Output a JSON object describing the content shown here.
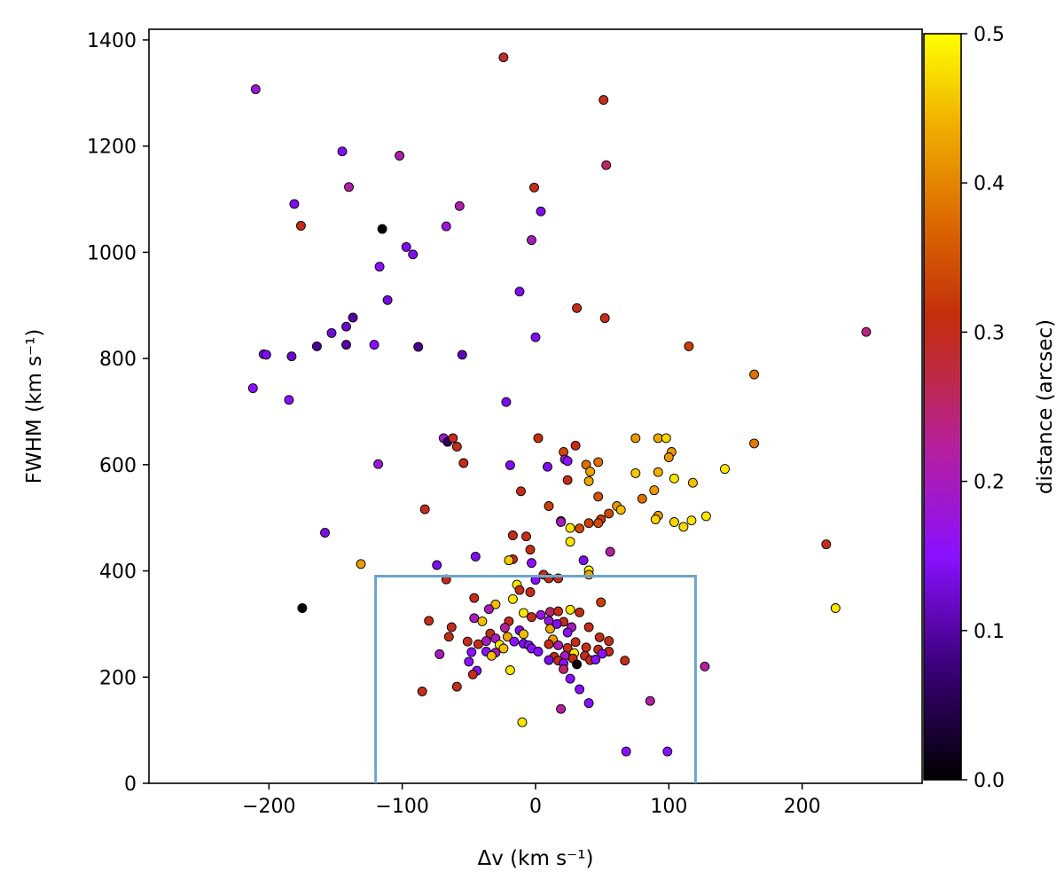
{
  "chart_data": {
    "type": "scatter",
    "xlabel": "Δv (km s⁻¹)",
    "ylabel": "FWHM (km s⁻¹)",
    "xlim": [
      -290,
      290
    ],
    "ylim": [
      0,
      1420
    ],
    "x_ticks": [
      -200,
      -100,
      0,
      100,
      200
    ],
    "y_ticks": [
      0,
      200,
      400,
      600,
      800,
      1000,
      1200,
      1400
    ],
    "colorbar": {
      "label": "distance (arcsec)",
      "range": [
        0.0,
        0.5
      ],
      "ticks": [
        0.0,
        0.1,
        0.2,
        0.3,
        0.4,
        0.5
      ],
      "tick_labels": [
        "0.0",
        "0.1",
        "0.2",
        "0.3",
        "0.4",
        "0.5"
      ],
      "colormap": "gnuplot"
    },
    "selection_box": {
      "x": [
        -120,
        120
      ],
      "y": [
        0,
        390
      ],
      "color": "#6aa6cd"
    },
    "grid": false,
    "points": [
      {
        "x": -210,
        "y": 1307,
        "d": 0.18
      },
      {
        "x": -24,
        "y": 1367,
        "d": 0.29
      },
      {
        "x": 51,
        "y": 1287,
        "d": 0.3
      },
      {
        "x": -145,
        "y": 1190,
        "d": 0.14
      },
      {
        "x": -102,
        "y": 1182,
        "d": 0.21
      },
      {
        "x": 53,
        "y": 1164,
        "d": 0.25
      },
      {
        "x": -140,
        "y": 1123,
        "d": 0.22
      },
      {
        "x": -1,
        "y": 1122,
        "d": 0.3
      },
      {
        "x": -181,
        "y": 1091,
        "d": 0.14
      },
      {
        "x": -57,
        "y": 1087,
        "d": 0.21
      },
      {
        "x": 4,
        "y": 1077,
        "d": 0.14
      },
      {
        "x": -176,
        "y": 1050,
        "d": 0.3
      },
      {
        "x": -115,
        "y": 1044,
        "d": 0.0
      },
      {
        "x": -67,
        "y": 1049,
        "d": 0.18
      },
      {
        "x": -3,
        "y": 1023,
        "d": 0.2
      },
      {
        "x": -97,
        "y": 1010,
        "d": 0.14
      },
      {
        "x": -92,
        "y": 996,
        "d": 0.14
      },
      {
        "x": -117,
        "y": 973,
        "d": 0.15
      },
      {
        "x": -12,
        "y": 926,
        "d": 0.14
      },
      {
        "x": -111,
        "y": 910,
        "d": 0.13
      },
      {
        "x": 31,
        "y": 895,
        "d": 0.3
      },
      {
        "x": 52,
        "y": 876,
        "d": 0.3
      },
      {
        "x": -137,
        "y": 877,
        "d": 0.1
      },
      {
        "x": -142,
        "y": 860,
        "d": 0.12
      },
      {
        "x": 248,
        "y": 850,
        "d": 0.24
      },
      {
        "x": -153,
        "y": 848,
        "d": 0.13
      },
      {
        "x": 0,
        "y": 840,
        "d": 0.14
      },
      {
        "x": -164,
        "y": 823,
        "d": 0.09
      },
      {
        "x": -142,
        "y": 826,
        "d": 0.1
      },
      {
        "x": -121,
        "y": 826,
        "d": 0.15
      },
      {
        "x": -88,
        "y": 822,
        "d": 0.09
      },
      {
        "x": 115,
        "y": 823,
        "d": 0.33
      },
      {
        "x": -204,
        "y": 808,
        "d": 0.14
      },
      {
        "x": -202,
        "y": 807,
        "d": 0.14
      },
      {
        "x": -183,
        "y": 804,
        "d": 0.12
      },
      {
        "x": -55,
        "y": 807,
        "d": 0.11
      },
      {
        "x": -212,
        "y": 744,
        "d": 0.15
      },
      {
        "x": -185,
        "y": 722,
        "d": 0.15
      },
      {
        "x": 164,
        "y": 770,
        "d": 0.38
      },
      {
        "x": -22,
        "y": 718,
        "d": 0.14
      },
      {
        "x": -69,
        "y": 650,
        "d": 0.19
      },
      {
        "x": -66,
        "y": 643,
        "d": 0.06
      },
      {
        "x": -62,
        "y": 650,
        "d": 0.3
      },
      {
        "x": -59,
        "y": 634,
        "d": 0.3
      },
      {
        "x": 2,
        "y": 650,
        "d": 0.31
      },
      {
        "x": 30,
        "y": 636,
        "d": 0.3
      },
      {
        "x": 75,
        "y": 650,
        "d": 0.42
      },
      {
        "x": 92,
        "y": 650,
        "d": 0.43
      },
      {
        "x": 98,
        "y": 650,
        "d": 0.47
      },
      {
        "x": 164,
        "y": 640,
        "d": 0.39
      },
      {
        "x": 21,
        "y": 624,
        "d": 0.34
      },
      {
        "x": 102,
        "y": 624,
        "d": 0.42
      },
      {
        "x": 100,
        "y": 614,
        "d": 0.42
      },
      {
        "x": 22,
        "y": 610,
        "d": 0.18
      },
      {
        "x": 24,
        "y": 607,
        "d": 0.15
      },
      {
        "x": -54,
        "y": 603,
        "d": 0.3
      },
      {
        "x": -118,
        "y": 601,
        "d": 0.18
      },
      {
        "x": -19,
        "y": 599,
        "d": 0.14
      },
      {
        "x": 38,
        "y": 600,
        "d": 0.38
      },
      {
        "x": 47,
        "y": 605,
        "d": 0.38
      },
      {
        "x": 9,
        "y": 596,
        "d": 0.14
      },
      {
        "x": 41,
        "y": 587,
        "d": 0.43
      },
      {
        "x": 75,
        "y": 584,
        "d": 0.46
      },
      {
        "x": 92,
        "y": 586,
        "d": 0.44
      },
      {
        "x": 142,
        "y": 592,
        "d": 0.48
      },
      {
        "x": 40,
        "y": 569,
        "d": 0.43
      },
      {
        "x": 24,
        "y": 571,
        "d": 0.3
      },
      {
        "x": 104,
        "y": 574,
        "d": 0.48
      },
      {
        "x": 118,
        "y": 566,
        "d": 0.45
      },
      {
        "x": -11,
        "y": 550,
        "d": 0.3
      },
      {
        "x": 89,
        "y": 552,
        "d": 0.42
      },
      {
        "x": 47,
        "y": 540,
        "d": 0.35
      },
      {
        "x": 80,
        "y": 536,
        "d": 0.38
      },
      {
        "x": 61,
        "y": 522,
        "d": 0.42
      },
      {
        "x": 64,
        "y": 515,
        "d": 0.45
      },
      {
        "x": 10,
        "y": 522,
        "d": 0.33
      },
      {
        "x": -83,
        "y": 516,
        "d": 0.3
      },
      {
        "x": 55,
        "y": 508,
        "d": 0.34
      },
      {
        "x": 92,
        "y": 504,
        "d": 0.42
      },
      {
        "x": 90,
        "y": 497,
        "d": 0.47
      },
      {
        "x": 128,
        "y": 503,
        "d": 0.48
      },
      {
        "x": 19,
        "y": 494,
        "d": 0.32
      },
      {
        "x": 49,
        "y": 497,
        "d": 0.33
      },
      {
        "x": 104,
        "y": 492,
        "d": 0.47
      },
      {
        "x": 117,
        "y": 495,
        "d": 0.48
      },
      {
        "x": 111,
        "y": 483,
        "d": 0.47
      },
      {
        "x": 26,
        "y": 481,
        "d": 0.48
      },
      {
        "x": 33,
        "y": 480,
        "d": 0.34
      },
      {
        "x": 40,
        "y": 490,
        "d": 0.33
      },
      {
        "x": 47,
        "y": 490,
        "d": 0.34
      },
      {
        "x": 19,
        "y": 492,
        "d": 0.2
      },
      {
        "x": -158,
        "y": 472,
        "d": 0.14
      },
      {
        "x": -17,
        "y": 467,
        "d": 0.3
      },
      {
        "x": -7,
        "y": 465,
        "d": 0.3
      },
      {
        "x": 26,
        "y": 455,
        "d": 0.48
      },
      {
        "x": -4,
        "y": 440,
        "d": 0.3
      },
      {
        "x": 56,
        "y": 436,
        "d": 0.22
      },
      {
        "x": 218,
        "y": 450,
        "d": 0.3
      },
      {
        "x": -45,
        "y": 427,
        "d": 0.14
      },
      {
        "x": -17,
        "y": 422,
        "d": 0.3
      },
      {
        "x": -20,
        "y": 420,
        "d": 0.46
      },
      {
        "x": -3,
        "y": 415,
        "d": 0.15
      },
      {
        "x": 36,
        "y": 420,
        "d": 0.14
      },
      {
        "x": -131,
        "y": 413,
        "d": 0.42
      },
      {
        "x": -74,
        "y": 411,
        "d": 0.14
      },
      {
        "x": 40,
        "y": 401,
        "d": 0.5
      },
      {
        "x": 40,
        "y": 393,
        "d": 0.43
      },
      {
        "x": 6,
        "y": 393,
        "d": 0.3
      },
      {
        "x": 10,
        "y": 386,
        "d": 0.3
      },
      {
        "x": 17,
        "y": 386,
        "d": 0.3
      },
      {
        "x": -67,
        "y": 384,
        "d": 0.3
      },
      {
        "x": 0,
        "y": 383,
        "d": 0.15
      },
      {
        "x": -14,
        "y": 374,
        "d": 0.48
      },
      {
        "x": -4,
        "y": 360,
        "d": 0.3
      },
      {
        "x": -12,
        "y": 364,
        "d": 0.3
      },
      {
        "x": -46,
        "y": 349,
        "d": 0.3
      },
      {
        "x": -17,
        "y": 347,
        "d": 0.48
      },
      {
        "x": 49,
        "y": 341,
        "d": 0.33
      },
      {
        "x": -30,
        "y": 337,
        "d": 0.45
      },
      {
        "x": -35,
        "y": 328,
        "d": 0.2
      },
      {
        "x": -175,
        "y": 330,
        "d": 0.0
      },
      {
        "x": 225,
        "y": 330,
        "d": 0.48
      },
      {
        "x": 26,
        "y": 327,
        "d": 0.48
      },
      {
        "x": 11,
        "y": 323,
        "d": 0.25
      },
      {
        "x": 17,
        "y": 324,
        "d": 0.3
      },
      {
        "x": 33,
        "y": 322,
        "d": 0.3
      },
      {
        "x": -9,
        "y": 321,
        "d": 0.48
      },
      {
        "x": -3,
        "y": 313,
        "d": 0.3
      },
      {
        "x": 4,
        "y": 317,
        "d": 0.17
      },
      {
        "x": -46,
        "y": 311,
        "d": 0.2
      },
      {
        "x": -80,
        "y": 306,
        "d": 0.3
      },
      {
        "x": -40,
        "y": 305,
        "d": 0.45
      },
      {
        "x": -20,
        "y": 305,
        "d": 0.3
      },
      {
        "x": 10,
        "y": 306,
        "d": 0.17
      },
      {
        "x": 21,
        "y": 304,
        "d": 0.3
      },
      {
        "x": 40,
        "y": 294,
        "d": 0.3
      },
      {
        "x": -63,
        "y": 294,
        "d": 0.3
      },
      {
        "x": -23,
        "y": 293,
        "d": 0.22
      },
      {
        "x": 11,
        "y": 291,
        "d": 0.43
      },
      {
        "x": 27,
        "y": 294,
        "d": 0.2
      },
      {
        "x": 16,
        "y": 300,
        "d": 0.14
      },
      {
        "x": -34,
        "y": 282,
        "d": 0.3
      },
      {
        "x": -12,
        "y": 288,
        "d": 0.14
      },
      {
        "x": 24,
        "y": 284,
        "d": 0.15
      },
      {
        "x": -9,
        "y": 281,
        "d": 0.45
      },
      {
        "x": -65,
        "y": 276,
        "d": 0.3
      },
      {
        "x": -21,
        "y": 276,
        "d": 0.43
      },
      {
        "x": -30,
        "y": 273,
        "d": 0.2
      },
      {
        "x": 13,
        "y": 271,
        "d": 0.42
      },
      {
        "x": 48,
        "y": 275,
        "d": 0.3
      },
      {
        "x": -51,
        "y": 267,
        "d": 0.3
      },
      {
        "x": -37,
        "y": 268,
        "d": 0.2
      },
      {
        "x": -16,
        "y": 267,
        "d": 0.15
      },
      {
        "x": -9,
        "y": 263,
        "d": 0.14
      },
      {
        "x": 30,
        "y": 266,
        "d": 0.3
      },
      {
        "x": 55,
        "y": 268,
        "d": 0.3
      },
      {
        "x": -43,
        "y": 262,
        "d": 0.3
      },
      {
        "x": -27,
        "y": 261,
        "d": 0.48
      },
      {
        "x": -5,
        "y": 260,
        "d": 0.15
      },
      {
        "x": 10,
        "y": 262,
        "d": 0.3
      },
      {
        "x": 17,
        "y": 260,
        "d": 0.2
      },
      {
        "x": 38,
        "y": 256,
        "d": 0.3
      },
      {
        "x": -24,
        "y": 254,
        "d": 0.45
      },
      {
        "x": -3,
        "y": 254,
        "d": 0.15
      },
      {
        "x": 24,
        "y": 255,
        "d": 0.3
      },
      {
        "x": 47,
        "y": 252,
        "d": 0.3
      },
      {
        "x": -37,
        "y": 248,
        "d": 0.15
      },
      {
        "x": -48,
        "y": 247,
        "d": 0.15
      },
      {
        "x": -72,
        "y": 243,
        "d": 0.2
      },
      {
        "x": -30,
        "y": 246,
        "d": 0.2
      },
      {
        "x": 2,
        "y": 248,
        "d": 0.15
      },
      {
        "x": 29,
        "y": 245,
        "d": 0.48
      },
      {
        "x": 55,
        "y": 248,
        "d": 0.3
      },
      {
        "x": -33,
        "y": 240,
        "d": 0.45
      },
      {
        "x": 14,
        "y": 238,
        "d": 0.3
      },
      {
        "x": 22,
        "y": 240,
        "d": 0.2
      },
      {
        "x": 37,
        "y": 240,
        "d": 0.3
      },
      {
        "x": 50,
        "y": 244,
        "d": 0.15
      },
      {
        "x": 10,
        "y": 232,
        "d": 0.14
      },
      {
        "x": 17,
        "y": 231,
        "d": 0.3
      },
      {
        "x": 28,
        "y": 235,
        "d": 0.3
      },
      {
        "x": 41,
        "y": 232,
        "d": 0.3
      },
      {
        "x": 67,
        "y": 231,
        "d": 0.3
      },
      {
        "x": -50,
        "y": 229,
        "d": 0.15
      },
      {
        "x": 45,
        "y": 233,
        "d": 0.15
      },
      {
        "x": 21,
        "y": 226,
        "d": 0.15
      },
      {
        "x": 31,
        "y": 224,
        "d": 0.0
      },
      {
        "x": 127,
        "y": 220,
        "d": 0.22
      },
      {
        "x": 21,
        "y": 215,
        "d": 0.25
      },
      {
        "x": -44,
        "y": 212,
        "d": 0.15
      },
      {
        "x": -19,
        "y": 213,
        "d": 0.48
      },
      {
        "x": -47,
        "y": 205,
        "d": 0.3
      },
      {
        "x": 26,
        "y": 197,
        "d": 0.15
      },
      {
        "x": -59,
        "y": 182,
        "d": 0.3
      },
      {
        "x": 33,
        "y": 177,
        "d": 0.15
      },
      {
        "x": -85,
        "y": 173,
        "d": 0.3
      },
      {
        "x": 86,
        "y": 155,
        "d": 0.22
      },
      {
        "x": 40,
        "y": 151,
        "d": 0.15
      },
      {
        "x": 19,
        "y": 140,
        "d": 0.22
      },
      {
        "x": -10,
        "y": 115,
        "d": 0.48
      },
      {
        "x": 68,
        "y": 60,
        "d": 0.15
      },
      {
        "x": 99,
        "y": 60,
        "d": 0.15
      }
    ]
  }
}
